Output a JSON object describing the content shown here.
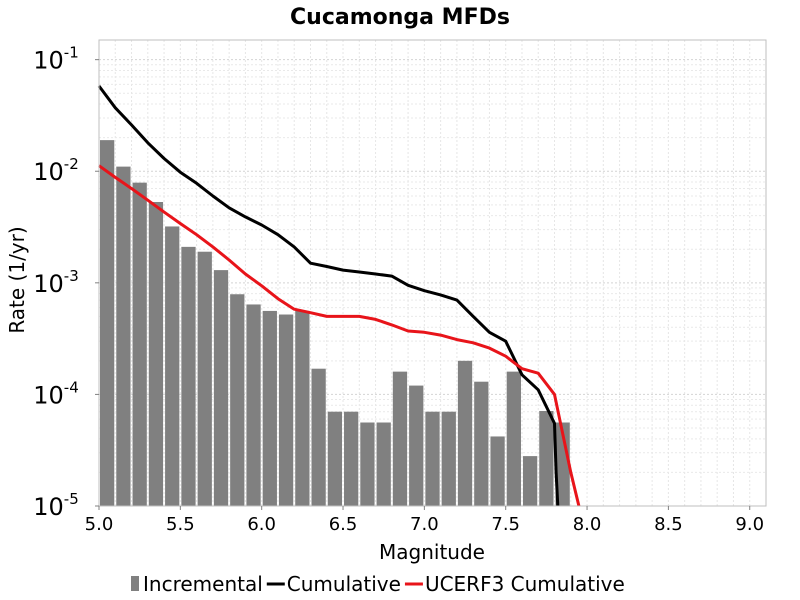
{
  "chart_data": {
    "type": "bar",
    "title": "Cucamonga MFDs",
    "xlabel": "Magnitude",
    "ylabel": "Rate (1/yr)",
    "xlim": [
      5.0,
      9.1
    ],
    "ylim": [
      1e-05,
      0.15
    ],
    "yscale": "log",
    "grid": true,
    "legend_position": "bottom",
    "x_ticks": [
      "5.0",
      "5.5",
      "6.0",
      "6.5",
      "7.0",
      "7.5",
      "8.0",
      "8.5",
      "9.0"
    ],
    "y_ticks": [
      {
        "base": "10",
        "exp": "-1",
        "value": 0.1
      },
      {
        "base": "10",
        "exp": "-2",
        "value": 0.01
      },
      {
        "base": "10",
        "exp": "-3",
        "value": 0.001
      },
      {
        "base": "10",
        "exp": "-4",
        "value": 0.0001
      },
      {
        "base": "10",
        "exp": "-5",
        "value": 1e-05
      }
    ],
    "series": [
      {
        "name": "Incremental",
        "kind": "bar",
        "color": "#808080",
        "bar_width": 0.1,
        "x": [
          5.05,
          5.15,
          5.25,
          5.35,
          5.45,
          5.55,
          5.65,
          5.75,
          5.85,
          5.95,
          6.05,
          6.15,
          6.25,
          6.35,
          6.45,
          6.55,
          6.65,
          6.75,
          6.85,
          6.95,
          7.05,
          7.15,
          7.25,
          7.35,
          7.45,
          7.55,
          7.65,
          7.75,
          7.85
        ],
        "values": [
          0.019,
          0.011,
          0.0079,
          0.0053,
          0.0032,
          0.0021,
          0.0019,
          0.0013,
          0.00079,
          0.00064,
          0.00056,
          0.00052,
          0.00056,
          0.00017,
          7e-05,
          7e-05,
          5.6e-05,
          5.6e-05,
          0.00016,
          0.00012,
          7e-05,
          7e-05,
          0.0002,
          0.00013,
          4.2e-05,
          0.00016,
          2.8e-05,
          7.1e-05,
          5.6e-05
        ]
      },
      {
        "name": "Cumulative",
        "kind": "line",
        "color": "#000000",
        "x": [
          5.0,
          5.1,
          5.2,
          5.3,
          5.4,
          5.5,
          5.6,
          5.7,
          5.8,
          5.9,
          6.0,
          6.1,
          6.2,
          6.3,
          6.4,
          6.5,
          6.6,
          6.7,
          6.8,
          6.9,
          7.0,
          7.1,
          7.2,
          7.3,
          7.4,
          7.5,
          7.6,
          7.7,
          7.8,
          7.81,
          7.82
        ],
        "values": [
          0.058,
          0.037,
          0.026,
          0.018,
          0.013,
          0.0098,
          0.0078,
          0.006,
          0.0047,
          0.0039,
          0.0033,
          0.0027,
          0.0021,
          0.0015,
          0.0014,
          0.0013,
          0.00125,
          0.0012,
          0.00115,
          0.00095,
          0.00085,
          0.00078,
          0.0007,
          0.0005,
          0.00036,
          0.0003,
          0.00015,
          0.00011,
          5.5e-05,
          2e-05,
          1e-05
        ]
      },
      {
        "name": "UCERF3 Cumulative",
        "kind": "line",
        "color": "#e8141a",
        "x": [
          5.0,
          5.1,
          5.2,
          5.3,
          5.4,
          5.5,
          5.6,
          5.7,
          5.8,
          5.9,
          6.0,
          6.1,
          6.2,
          6.3,
          6.4,
          6.5,
          6.6,
          6.7,
          6.8,
          6.9,
          7.0,
          7.1,
          7.2,
          7.3,
          7.4,
          7.5,
          7.6,
          7.7,
          7.8,
          7.9,
          7.95
        ],
        "values": [
          0.0112,
          0.0088,
          0.007,
          0.0055,
          0.0043,
          0.0034,
          0.0027,
          0.0021,
          0.0016,
          0.0012,
          0.00094,
          0.00072,
          0.00058,
          0.00054,
          0.0005,
          0.0005,
          0.0005,
          0.00047,
          0.00042,
          0.00037,
          0.00036,
          0.00034,
          0.00031,
          0.00029,
          0.00026,
          0.00022,
          0.00017,
          0.000155,
          0.0001,
          2e-05,
          1e-05
        ]
      }
    ]
  }
}
